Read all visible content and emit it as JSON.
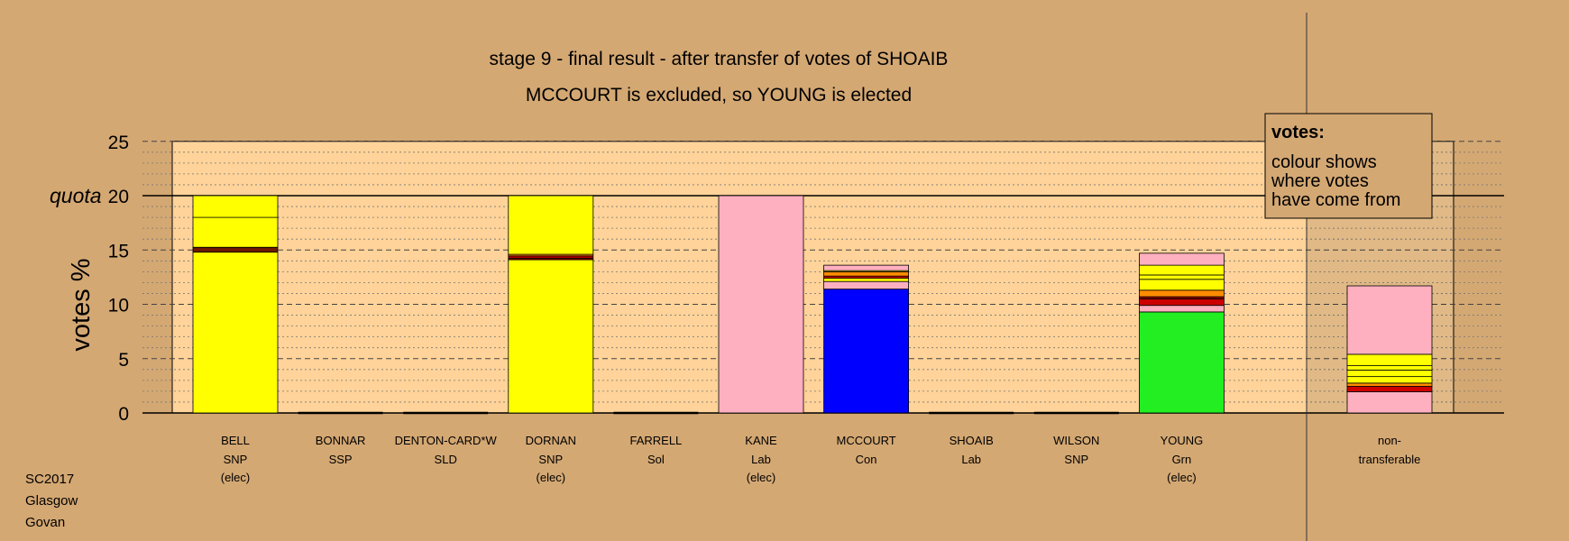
{
  "chart_data": {
    "type": "bar",
    "stacked": true,
    "title": "stage 9 - final result - after transfer of votes of SHOAIB",
    "subtitle": "MCCOURT is excluded, so YOUNG is elected",
    "ylabel": "votes %",
    "ylim": [
      0,
      25
    ],
    "yticks": [
      0,
      5,
      10,
      15,
      20,
      25
    ],
    "quota": 20,
    "quota_label": "quota",
    "grid": "dashed every 5, dotted every 1",
    "legend_position": "top-right",
    "legend": {
      "title": "votes:",
      "lines": [
        "colour shows",
        "where votes",
        "have come from"
      ]
    },
    "colors": {
      "SNP": "#ffff00",
      "Lab": "#ffb0c0",
      "Con": "#0000ff",
      "Grn": "#22ee22",
      "SSP": "#cc0000",
      "SLD": "#ff8c00",
      "Sol": "#8b0000",
      "dark": "#6b1a00",
      "plot_bg": "#ffd399",
      "page_bg": "#d4a873"
    },
    "candidates": [
      {
        "name": "BELL",
        "party": "SNP",
        "status": "(elec)",
        "segments": [
          {
            "value": 14.8,
            "color": "SNP"
          },
          {
            "value": 0.45,
            "color": "dark"
          },
          {
            "value": 2.75,
            "color": "SNP"
          },
          {
            "value": 2.0,
            "color": "SNP"
          }
        ]
      },
      {
        "name": "BONNAR",
        "party": "SSP",
        "status": "",
        "segments": []
      },
      {
        "name": "DENTON-CARD*W",
        "party": "SLD",
        "status": "",
        "segments": []
      },
      {
        "name": "DORNAN",
        "party": "SNP",
        "status": "(elec)",
        "segments": [
          {
            "value": 14.1,
            "color": "SNP"
          },
          {
            "value": 0.15,
            "color": "Sol"
          },
          {
            "value": 0.2,
            "color": "SSP"
          },
          {
            "value": 0.15,
            "color": "SLD"
          },
          {
            "value": 5.4,
            "color": "SNP"
          }
        ]
      },
      {
        "name": "FARRELL",
        "party": "Sol",
        "status": "",
        "segments": []
      },
      {
        "name": "KANE",
        "party": "Lab",
        "status": "(elec)",
        "segments": [
          {
            "value": 20.0,
            "color": "Lab"
          }
        ]
      },
      {
        "name": "MCCOURT",
        "party": "Con",
        "status": "",
        "segments": [
          {
            "value": 11.4,
            "color": "Con"
          },
          {
            "value": 0.7,
            "color": "Lab"
          },
          {
            "value": 0.3,
            "color": "SNP"
          },
          {
            "value": 0.2,
            "color": "SSP"
          },
          {
            "value": 0.4,
            "color": "SLD"
          },
          {
            "value": 0.1,
            "color": "SNP"
          },
          {
            "value": 0.5,
            "color": "Lab"
          }
        ]
      },
      {
        "name": "SHOAIB",
        "party": "Lab",
        "status": "",
        "segments": []
      },
      {
        "name": "WILSON",
        "party": "SNP",
        "status": "",
        "segments": []
      },
      {
        "name": "YOUNG",
        "party": "Grn",
        "status": "(elec)",
        "segments": [
          {
            "value": 9.3,
            "color": "Grn"
          },
          {
            "value": 0.6,
            "color": "Lab"
          },
          {
            "value": 0.6,
            "color": "SSP"
          },
          {
            "value": 0.2,
            "color": "Sol"
          },
          {
            "value": 0.6,
            "color": "SLD"
          },
          {
            "value": 1.0,
            "color": "SNP"
          },
          {
            "value": 0.4,
            "color": "SNP"
          },
          {
            "value": 0.9,
            "color": "SNP"
          },
          {
            "value": 1.1,
            "color": "Lab"
          }
        ]
      }
    ],
    "non_transferable": {
      "label_lines": [
        "non-",
        "transferable"
      ],
      "segments": [
        {
          "value": 1.95,
          "color": "Lab"
        },
        {
          "value": 0.5,
          "color": "SSP"
        },
        {
          "value": 0.3,
          "color": "SLD"
        },
        {
          "value": 0.6,
          "color": "SNP"
        },
        {
          "value": 0.6,
          "color": "SNP"
        },
        {
          "value": 0.4,
          "color": "SNP"
        },
        {
          "value": 1.05,
          "color": "SNP"
        },
        {
          "value": 6.3,
          "color": "Lab"
        }
      ]
    }
  },
  "footer": [
    "SC2017",
    "Glasgow",
    "Govan"
  ]
}
